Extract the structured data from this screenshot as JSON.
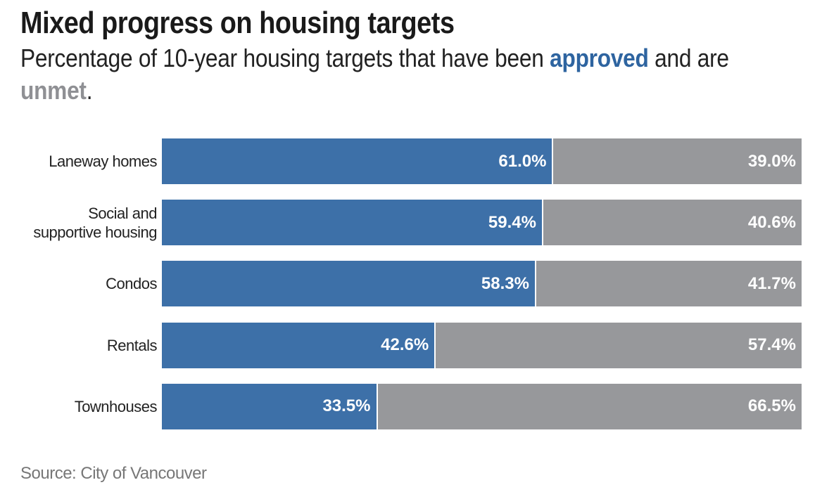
{
  "title": "Mixed progress on housing targets",
  "subtitle": {
    "prefix": "Percentage of 10-year housing targets that have been ",
    "approved": "approved",
    "middle": " and are ",
    "unmet": "unmet",
    "suffix": "."
  },
  "source": "Source: City of Vancouver",
  "colors": {
    "approved": "#3d70a8",
    "unmet": "#97989b"
  },
  "chart_data": {
    "type": "bar",
    "orientation": "horizontal",
    "stacked": true,
    "title": "Mixed progress on housing targets",
    "categories": [
      "Laneway homes",
      "Social and\nsupportive housing",
      "Condos",
      "Rentals",
      "Townhouses"
    ],
    "series": [
      {
        "name": "approved",
        "values": [
          61.0,
          59.4,
          58.3,
          42.6,
          33.5
        ],
        "labels": [
          "61.0%",
          "59.4%",
          "58.3%",
          "42.6%",
          "33.5%"
        ]
      },
      {
        "name": "unmet",
        "values": [
          39.0,
          40.6,
          41.7,
          57.4,
          66.5
        ],
        "labels": [
          "39.0%",
          "40.6%",
          "41.7%",
          "57.4%",
          "66.5%"
        ]
      }
    ],
    "xlim": [
      0,
      100
    ],
    "grid": false,
    "legend": "none (colored words in subtitle)"
  }
}
